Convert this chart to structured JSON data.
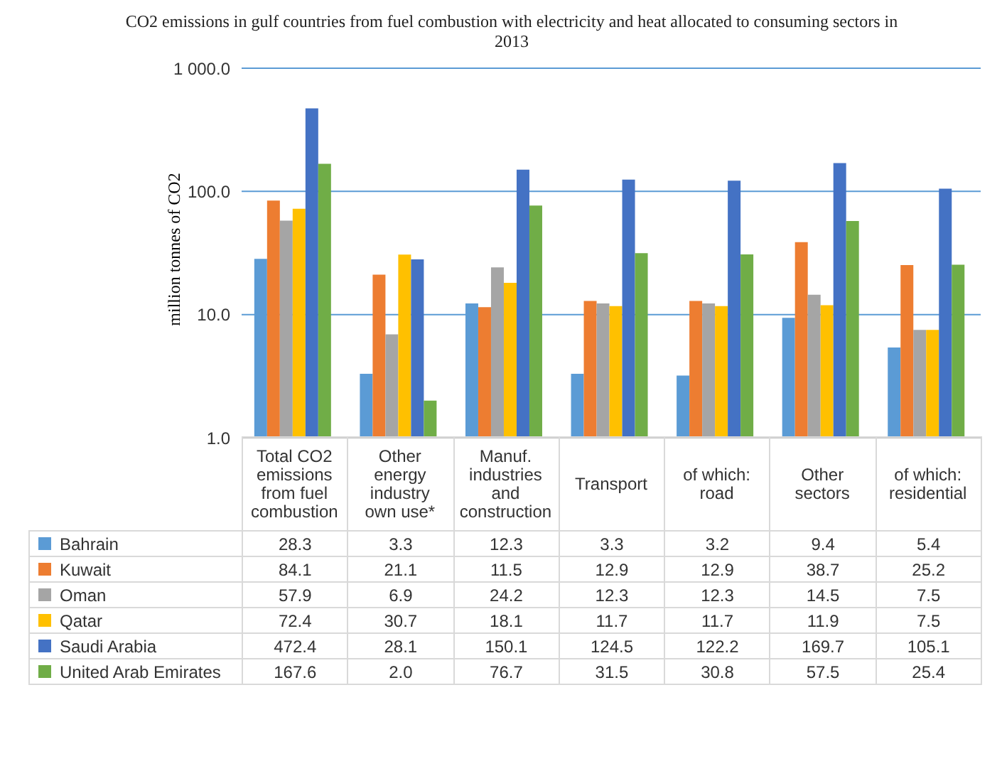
{
  "chart_data": {
    "type": "bar",
    "title": "CO2 emissions in gulf countries from fuel combustion with electricity and heat allocated to consuming sectors in 2013",
    "ylabel": "million tonnes of CO2",
    "categories": [
      "Total CO2 emissions from fuel combustion",
      "Other energy industry own use*",
      "Manuf. industries and construction",
      "Transport",
      "of which: road",
      "Other sectors",
      "of which: residential"
    ],
    "series": [
      {
        "name": "Bahrain",
        "color": "#5b9bd5",
        "values": [
          28.3,
          3.3,
          12.3,
          3.3,
          3.2,
          9.4,
          5.4
        ],
        "value_labels": [
          "28.3",
          "3.3",
          "12.3",
          "3.3",
          "3.2",
          "9.4",
          "5.4"
        ]
      },
      {
        "name": "Kuwait",
        "color": "#ed7d31",
        "values": [
          84.1,
          21.1,
          11.5,
          12.9,
          12.9,
          38.7,
          25.2
        ],
        "value_labels": [
          "84.1",
          "21.1",
          "11.5",
          "12.9",
          "12.9",
          "38.7",
          "25.2"
        ]
      },
      {
        "name": "Oman",
        "color": "#a5a5a5",
        "values": [
          57.9,
          6.9,
          24.2,
          12.3,
          12.3,
          14.5,
          7.5
        ],
        "value_labels": [
          "57.9",
          "6.9",
          "24.2",
          "12.3",
          "12.3",
          "14.5",
          "7.5"
        ]
      },
      {
        "name": "Qatar",
        "color": "#ffc000",
        "values": [
          72.4,
          30.7,
          18.1,
          11.7,
          11.7,
          11.9,
          7.5
        ],
        "value_labels": [
          "72.4",
          "30.7",
          "18.1",
          "11.7",
          "11.7",
          "11.9",
          "7.5"
        ]
      },
      {
        "name": "Saudi Arabia",
        "color": "#4472c4",
        "values": [
          472.4,
          28.1,
          150.1,
          124.5,
          122.2,
          169.7,
          105.1
        ],
        "value_labels": [
          "472.4",
          "28.1",
          "150.1",
          "124.5",
          "122.2",
          "169.7",
          "105.1"
        ]
      },
      {
        "name": "United Arab Emirates",
        "color": "#70ad47",
        "values": [
          167.6,
          2.0,
          76.7,
          31.5,
          30.8,
          57.5,
          25.4
        ],
        "value_labels": [
          "167.6",
          "2.0",
          "76.7",
          "31.5",
          "30.8",
          "57.5",
          "25.4"
        ]
      }
    ],
    "log": "y",
    "ylim": [
      1,
      1000
    ],
    "yticks": [
      {
        "value": 1,
        "label": "1.0"
      },
      {
        "value": 10,
        "label": "10.0"
      },
      {
        "value": 100,
        "label": "100.0"
      },
      {
        "value": 1000,
        "label": "1 000.0"
      }
    ],
    "grid": "y",
    "legend": "bottom"
  }
}
